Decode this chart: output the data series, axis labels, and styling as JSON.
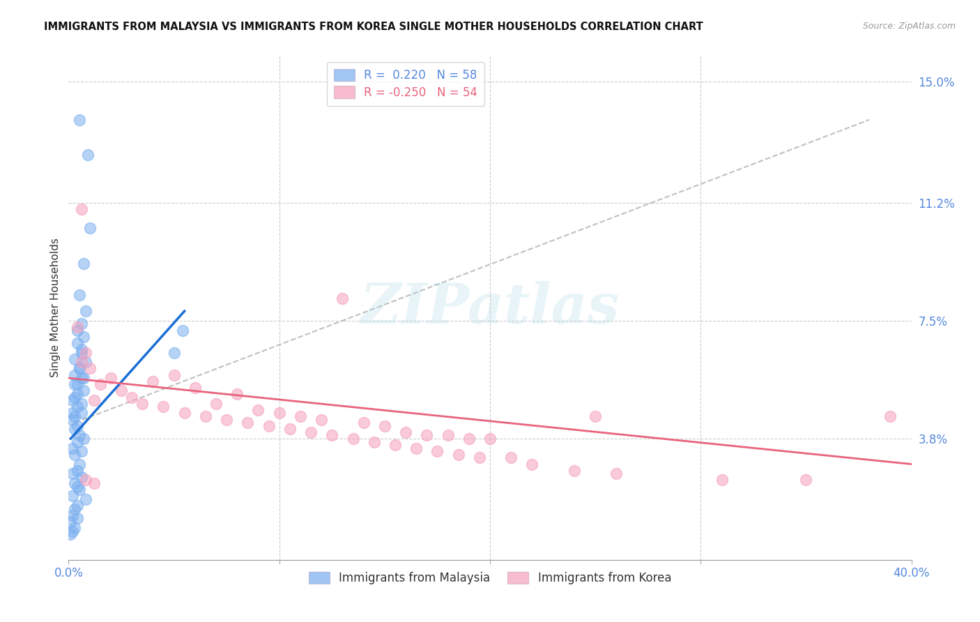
{
  "title": "IMMIGRANTS FROM MALAYSIA VS IMMIGRANTS FROM KOREA SINGLE MOTHER HOUSEHOLDS CORRELATION CHART",
  "source": "Source: ZipAtlas.com",
  "ylabel": "Single Mother Households",
  "xlim": [
    0.0,
    0.4
  ],
  "ylim": [
    0.0,
    0.158
  ],
  "legend_r_malaysia": "R =  0.220",
  "legend_n_malaysia": "N = 58",
  "legend_r_korea": "R = -0.250",
  "legend_n_korea": "N = 54",
  "malaysia_color": "#7aaff0",
  "korea_color": "#f5a0bc",
  "malaysia_line_color": "#1a6fd4",
  "korea_line_color": "#e8637d",
  "trendline_dashed_color": "#b0b0b0",
  "background_color": "#ffffff",
  "grid_color": "#cccccc",
  "axis_label_color": "#5588dd",
  "ytick_positions": [
    0.038,
    0.075,
    0.112,
    0.15
  ],
  "ytick_labels": [
    "3.8%",
    "7.5%",
    "11.2%",
    "15.0%"
  ],
  "malaysia_scatter": [
    [
      0.005,
      0.138
    ],
    [
      0.009,
      0.127
    ],
    [
      0.01,
      0.104
    ],
    [
      0.007,
      0.093
    ],
    [
      0.005,
      0.083
    ],
    [
      0.008,
      0.078
    ],
    [
      0.006,
      0.074
    ],
    [
      0.004,
      0.072
    ],
    [
      0.007,
      0.07
    ],
    [
      0.004,
      0.068
    ],
    [
      0.006,
      0.066
    ],
    [
      0.003,
      0.063
    ],
    [
      0.005,
      0.06
    ],
    [
      0.003,
      0.058
    ],
    [
      0.006,
      0.057
    ],
    [
      0.004,
      0.055
    ],
    [
      0.007,
      0.053
    ],
    [
      0.003,
      0.051
    ],
    [
      0.002,
      0.05
    ],
    [
      0.004,
      0.048
    ],
    [
      0.006,
      0.046
    ],
    [
      0.003,
      0.045
    ],
    [
      0.002,
      0.044
    ],
    [
      0.004,
      0.042
    ],
    [
      0.003,
      0.041
    ],
    [
      0.005,
      0.039
    ],
    [
      0.007,
      0.038
    ],
    [
      0.004,
      0.037
    ],
    [
      0.002,
      0.035
    ],
    [
      0.006,
      0.034
    ],
    [
      0.003,
      0.033
    ],
    [
      0.005,
      0.03
    ],
    [
      0.004,
      0.028
    ],
    [
      0.002,
      0.027
    ],
    [
      0.006,
      0.026
    ],
    [
      0.003,
      0.024
    ],
    [
      0.004,
      0.023
    ],
    [
      0.005,
      0.022
    ],
    [
      0.002,
      0.02
    ],
    [
      0.008,
      0.019
    ],
    [
      0.004,
      0.017
    ],
    [
      0.003,
      0.016
    ],
    [
      0.002,
      0.014
    ],
    [
      0.004,
      0.013
    ],
    [
      0.001,
      0.012
    ],
    [
      0.003,
      0.01
    ],
    [
      0.002,
      0.009
    ],
    [
      0.001,
      0.008
    ],
    [
      0.054,
      0.072
    ],
    [
      0.05,
      0.065
    ],
    [
      0.006,
      0.065
    ],
    [
      0.008,
      0.062
    ],
    [
      0.005,
      0.06
    ],
    [
      0.007,
      0.057
    ],
    [
      0.003,
      0.055
    ],
    [
      0.004,
      0.052
    ],
    [
      0.006,
      0.049
    ],
    [
      0.002,
      0.046
    ]
  ],
  "korea_scatter": [
    [
      0.006,
      0.11
    ],
    [
      0.004,
      0.073
    ],
    [
      0.008,
      0.065
    ],
    [
      0.13,
      0.082
    ],
    [
      0.006,
      0.062
    ],
    [
      0.01,
      0.06
    ],
    [
      0.05,
      0.058
    ],
    [
      0.02,
      0.057
    ],
    [
      0.04,
      0.056
    ],
    [
      0.015,
      0.055
    ],
    [
      0.06,
      0.054
    ],
    [
      0.025,
      0.053
    ],
    [
      0.08,
      0.052
    ],
    [
      0.03,
      0.051
    ],
    [
      0.012,
      0.05
    ],
    [
      0.035,
      0.049
    ],
    [
      0.07,
      0.049
    ],
    [
      0.045,
      0.048
    ],
    [
      0.09,
      0.047
    ],
    [
      0.055,
      0.046
    ],
    [
      0.1,
      0.046
    ],
    [
      0.065,
      0.045
    ],
    [
      0.11,
      0.045
    ],
    [
      0.075,
      0.044
    ],
    [
      0.12,
      0.044
    ],
    [
      0.085,
      0.043
    ],
    [
      0.14,
      0.043
    ],
    [
      0.095,
      0.042
    ],
    [
      0.15,
      0.042
    ],
    [
      0.105,
      0.041
    ],
    [
      0.16,
      0.04
    ],
    [
      0.115,
      0.04
    ],
    [
      0.17,
      0.039
    ],
    [
      0.125,
      0.039
    ],
    [
      0.18,
      0.039
    ],
    [
      0.135,
      0.038
    ],
    [
      0.19,
      0.038
    ],
    [
      0.145,
      0.037
    ],
    [
      0.2,
      0.038
    ],
    [
      0.155,
      0.036
    ],
    [
      0.25,
      0.045
    ],
    [
      0.165,
      0.035
    ],
    [
      0.21,
      0.032
    ],
    [
      0.175,
      0.034
    ],
    [
      0.008,
      0.025
    ],
    [
      0.185,
      0.033
    ],
    [
      0.012,
      0.024
    ],
    [
      0.195,
      0.032
    ],
    [
      0.22,
      0.03
    ],
    [
      0.24,
      0.028
    ],
    [
      0.26,
      0.027
    ],
    [
      0.31,
      0.025
    ],
    [
      0.39,
      0.045
    ],
    [
      0.35,
      0.025
    ]
  ],
  "malaysia_trendline": [
    [
      0.001,
      0.038
    ],
    [
      0.055,
      0.078
    ]
  ],
  "korea_trendline": [
    [
      0.0,
      0.057
    ],
    [
      0.4,
      0.03
    ]
  ],
  "dashed_trendline": [
    [
      0.003,
      0.043
    ],
    [
      0.38,
      0.138
    ]
  ]
}
